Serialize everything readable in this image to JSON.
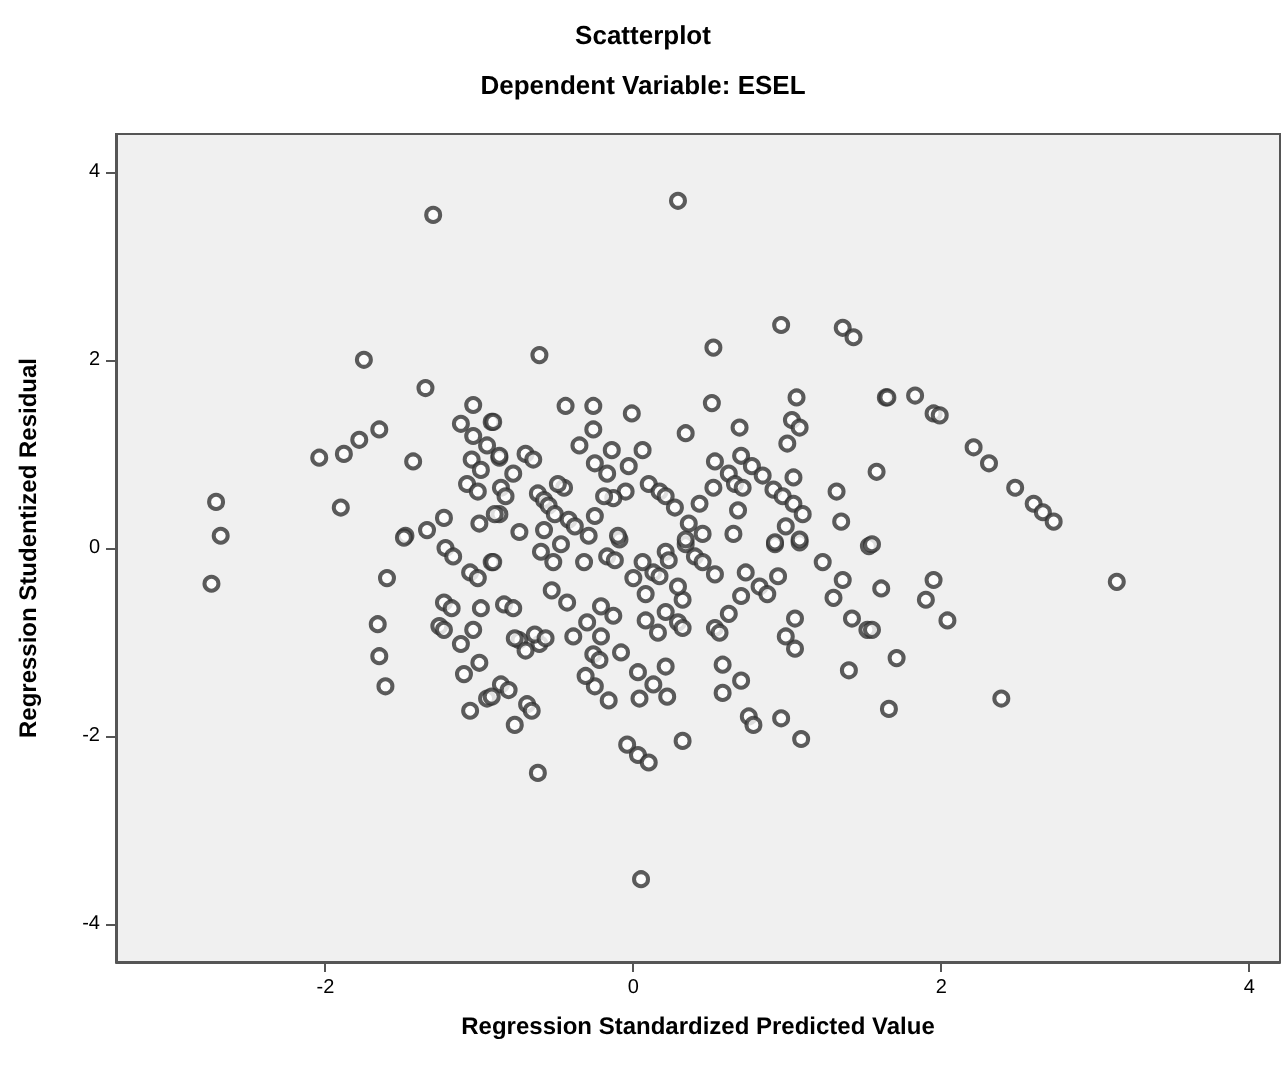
{
  "chart_data": {
    "type": "scatter",
    "title": "Scatterplot",
    "subtitle": "Dependent Variable: ESEL",
    "xlabel": "Regression Standardized Predicted Value",
    "ylabel": "Regression Studentized Residual",
    "xlim": [
      -3.36,
      4.2
    ],
    "ylim": [
      -4.4,
      4.4
    ],
    "xticks": [
      -2,
      0,
      2,
      4
    ],
    "yticks": [
      -4,
      -2,
      0,
      2,
      4
    ],
    "marker": "circle",
    "series": [
      {
        "color": "#333333",
        "x": [
          -1.3,
          0.29,
          -1.75,
          -0.61,
          0.96,
          1.36,
          1.43,
          0.52,
          -1.35,
          -1.04,
          -1.12,
          -0.92,
          -1.04,
          -1.65,
          -1.78,
          -1.88,
          -2.04,
          -1.43,
          -1.05,
          -0.95,
          -0.87,
          -0.99,
          -1.08,
          -1.01,
          -1.9,
          -2.71,
          -2.68,
          -1.48,
          -1.34,
          -1.23,
          -1.0,
          -0.87,
          -2.74,
          -1.6,
          -1.66,
          -1.65,
          -1.61,
          -1.23,
          -1.18,
          -1.26,
          -1.23,
          -1.12,
          -1.04,
          -1.1,
          -1.0,
          -1.06,
          -0.95,
          -0.99,
          -0.84,
          -1.06,
          -1.01,
          -0.92,
          -1.22,
          -1.17,
          -1.49,
          -0.62,
          -0.69,
          -0.86,
          -0.74,
          -0.61,
          0.05,
          -0.04,
          0.03,
          0.1,
          0.32,
          -0.77,
          -0.66,
          -0.81,
          -0.92,
          -0.16,
          -0.25,
          -0.31,
          0.03,
          0.13,
          0.21,
          0.22,
          0.04,
          -0.26,
          -0.22,
          -0.08,
          -0.21,
          -0.3,
          -0.39,
          -0.77,
          -0.7,
          -0.64,
          -0.57,
          -0.78,
          -0.53,
          -0.43,
          -0.21,
          -0.13,
          0.08,
          0.16,
          0.21,
          0.29,
          0.32,
          0.53,
          0.56,
          0.58,
          0.58,
          0.7,
          0.75,
          0.78,
          0.96,
          1.09,
          0.62,
          0.7,
          0.73,
          0.82,
          0.87,
          0.94,
          1.05,
          0.99,
          1.05,
          1.23,
          1.36,
          1.3,
          1.42,
          1.52,
          1.4,
          1.61,
          1.53,
          1.66,
          0.53,
          0.32,
          0.29,
          0.08,
          0.0,
          0.13,
          0.17,
          0.06,
          0.21,
          0.23,
          0.34,
          0.4,
          0.45,
          -0.17,
          -0.12,
          -0.09,
          -0.32,
          -0.52,
          -0.6,
          -0.47,
          -0.91,
          0.65,
          0.92,
          1.08,
          -0.44,
          -0.26,
          -0.26,
          -0.01,
          -0.35,
          -0.14,
          0.06,
          -0.03,
          -0.25,
          -0.17,
          0.34,
          0.51,
          0.69,
          0.53,
          0.7,
          1.06,
          1.03,
          1.08,
          1.0,
          1.04,
          1.58,
          1.64,
          1.32,
          1.35,
          0.62,
          0.77,
          0.84,
          0.91,
          0.97,
          1.04,
          1.1,
          0.66,
          0.71,
          0.52,
          0.43,
          0.68,
          0.99,
          1.08,
          0.92,
          0.45,
          0.36,
          0.34,
          0.1,
          0.17,
          0.21,
          0.27,
          -0.05,
          -0.13,
          -0.19,
          -0.25,
          -0.1,
          -0.62,
          -0.58,
          -0.55,
          -0.51,
          -0.45,
          -0.49,
          -0.7,
          -0.65,
          -0.87,
          -0.91,
          -0.78,
          -0.86,
          -0.83,
          -0.9,
          -0.74,
          -0.42,
          -0.38,
          -0.58,
          -0.29,
          1.65,
          1.83,
          1.95,
          1.99,
          2.21,
          2.31,
          2.48,
          2.6,
          2.66,
          2.73,
          1.55,
          3.14,
          1.95,
          1.9,
          2.04,
          1.71,
          2.39,
          1.55
        ],
        "values": [
          3.54,
          3.69,
          2.0,
          2.05,
          2.37,
          2.34,
          2.24,
          2.13,
          1.7,
          1.52,
          1.32,
          1.34,
          1.19,
          1.26,
          1.15,
          1.0,
          0.96,
          0.92,
          0.94,
          1.09,
          0.96,
          0.83,
          0.68,
          0.6,
          0.43,
          0.49,
          0.13,
          0.13,
          0.19,
          0.32,
          0.26,
          0.36,
          -0.38,
          -0.32,
          -0.81,
          -1.15,
          -1.47,
          -0.58,
          -0.64,
          -0.83,
          -0.87,
          -1.02,
          -0.87,
          -1.34,
          -1.22,
          -1.73,
          -1.6,
          -0.64,
          -0.6,
          -0.26,
          -0.32,
          -0.15,
          0.0,
          -0.09,
          0.11,
          -2.39,
          -1.66,
          -1.45,
          -0.98,
          -1.02,
          -3.52,
          -2.09,
          -2.2,
          -2.28,
          -2.05,
          -1.88,
          -1.73,
          -1.51,
          -1.58,
          -1.62,
          -1.47,
          -1.36,
          -1.32,
          -1.45,
          -1.26,
          -1.58,
          -1.6,
          -1.13,
          -1.19,
          -1.11,
          -0.94,
          -0.79,
          -0.94,
          -0.96,
          -1.09,
          -0.92,
          -0.96,
          -0.64,
          -0.45,
          -0.58,
          -0.62,
          -0.72,
          -0.77,
          -0.9,
          -0.68,
          -0.79,
          -0.85,
          -0.85,
          -0.9,
          -1.24,
          -1.54,
          -1.41,
          -1.79,
          -1.88,
          -1.81,
          -2.03,
          -0.7,
          -0.51,
          -0.26,
          -0.41,
          -0.49,
          -0.3,
          -0.75,
          -0.94,
          -1.07,
          -0.15,
          -0.34,
          -0.53,
          -0.75,
          -0.87,
          -1.3,
          -0.43,
          0.02,
          -1.71,
          -0.28,
          -0.55,
          -0.41,
          -0.49,
          -0.32,
          -0.26,
          -0.3,
          -0.15,
          -0.04,
          -0.13,
          0.04,
          -0.09,
          -0.15,
          -0.09,
          -0.13,
          0.09,
          -0.15,
          -0.15,
          -0.04,
          0.04,
          -0.15,
          0.15,
          0.04,
          0.06,
          1.51,
          1.51,
          1.26,
          1.43,
          1.09,
          1.04,
          1.04,
          0.87,
          0.9,
          0.79,
          1.22,
          1.54,
          1.28,
          0.92,
          0.98,
          1.6,
          1.36,
          1.28,
          1.11,
          0.75,
          0.81,
          1.6,
          0.6,
          0.28,
          0.79,
          0.87,
          0.77,
          0.62,
          0.55,
          0.47,
          0.36,
          0.68,
          0.64,
          0.64,
          0.47,
          0.4,
          0.23,
          0.09,
          0.06,
          0.15,
          0.26,
          0.09,
          0.68,
          0.6,
          0.55,
          0.43,
          0.6,
          0.53,
          0.55,
          0.34,
          0.13,
          0.58,
          0.51,
          0.45,
          0.36,
          0.64,
          0.68,
          1.0,
          0.94,
          0.98,
          1.34,
          0.79,
          0.64,
          0.55,
          0.36,
          0.17,
          0.3,
          0.23,
          0.19,
          0.13,
          1.6,
          1.62,
          1.43,
          1.41,
          1.07,
          0.9,
          0.64,
          0.47,
          0.38,
          0.28,
          0.04,
          -0.36,
          -0.34,
          -0.55,
          -0.77,
          -1.17,
          -1.6,
          -0.87
        ]
      }
    ]
  }
}
